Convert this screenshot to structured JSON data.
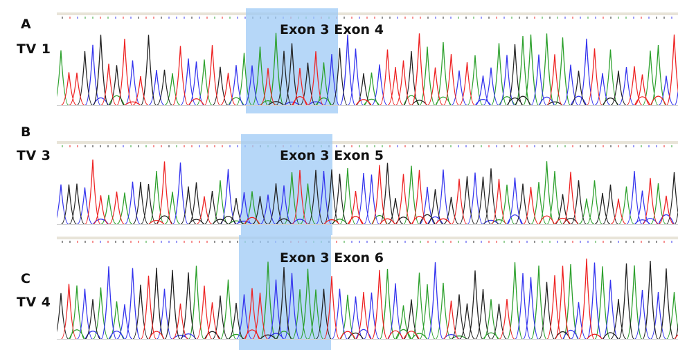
{
  "figure": {
    "colors": {
      "A": "#2ca02c",
      "C": "#3333ee",
      "G": "#222222",
      "T": "#ee2222",
      "highlight": "#9ec9f5"
    },
    "panels": [
      {
        "letter": "A",
        "variant": "TV 1",
        "junction": "Exon 3  Exon 4"
      },
      {
        "letter": "B",
        "variant": "TV 3",
        "junction": "Exon 3  Exon 5"
      },
      {
        "letter": "C",
        "variant": "TV 4",
        "junction": "Exon 3  Exon 6"
      }
    ]
  }
}
